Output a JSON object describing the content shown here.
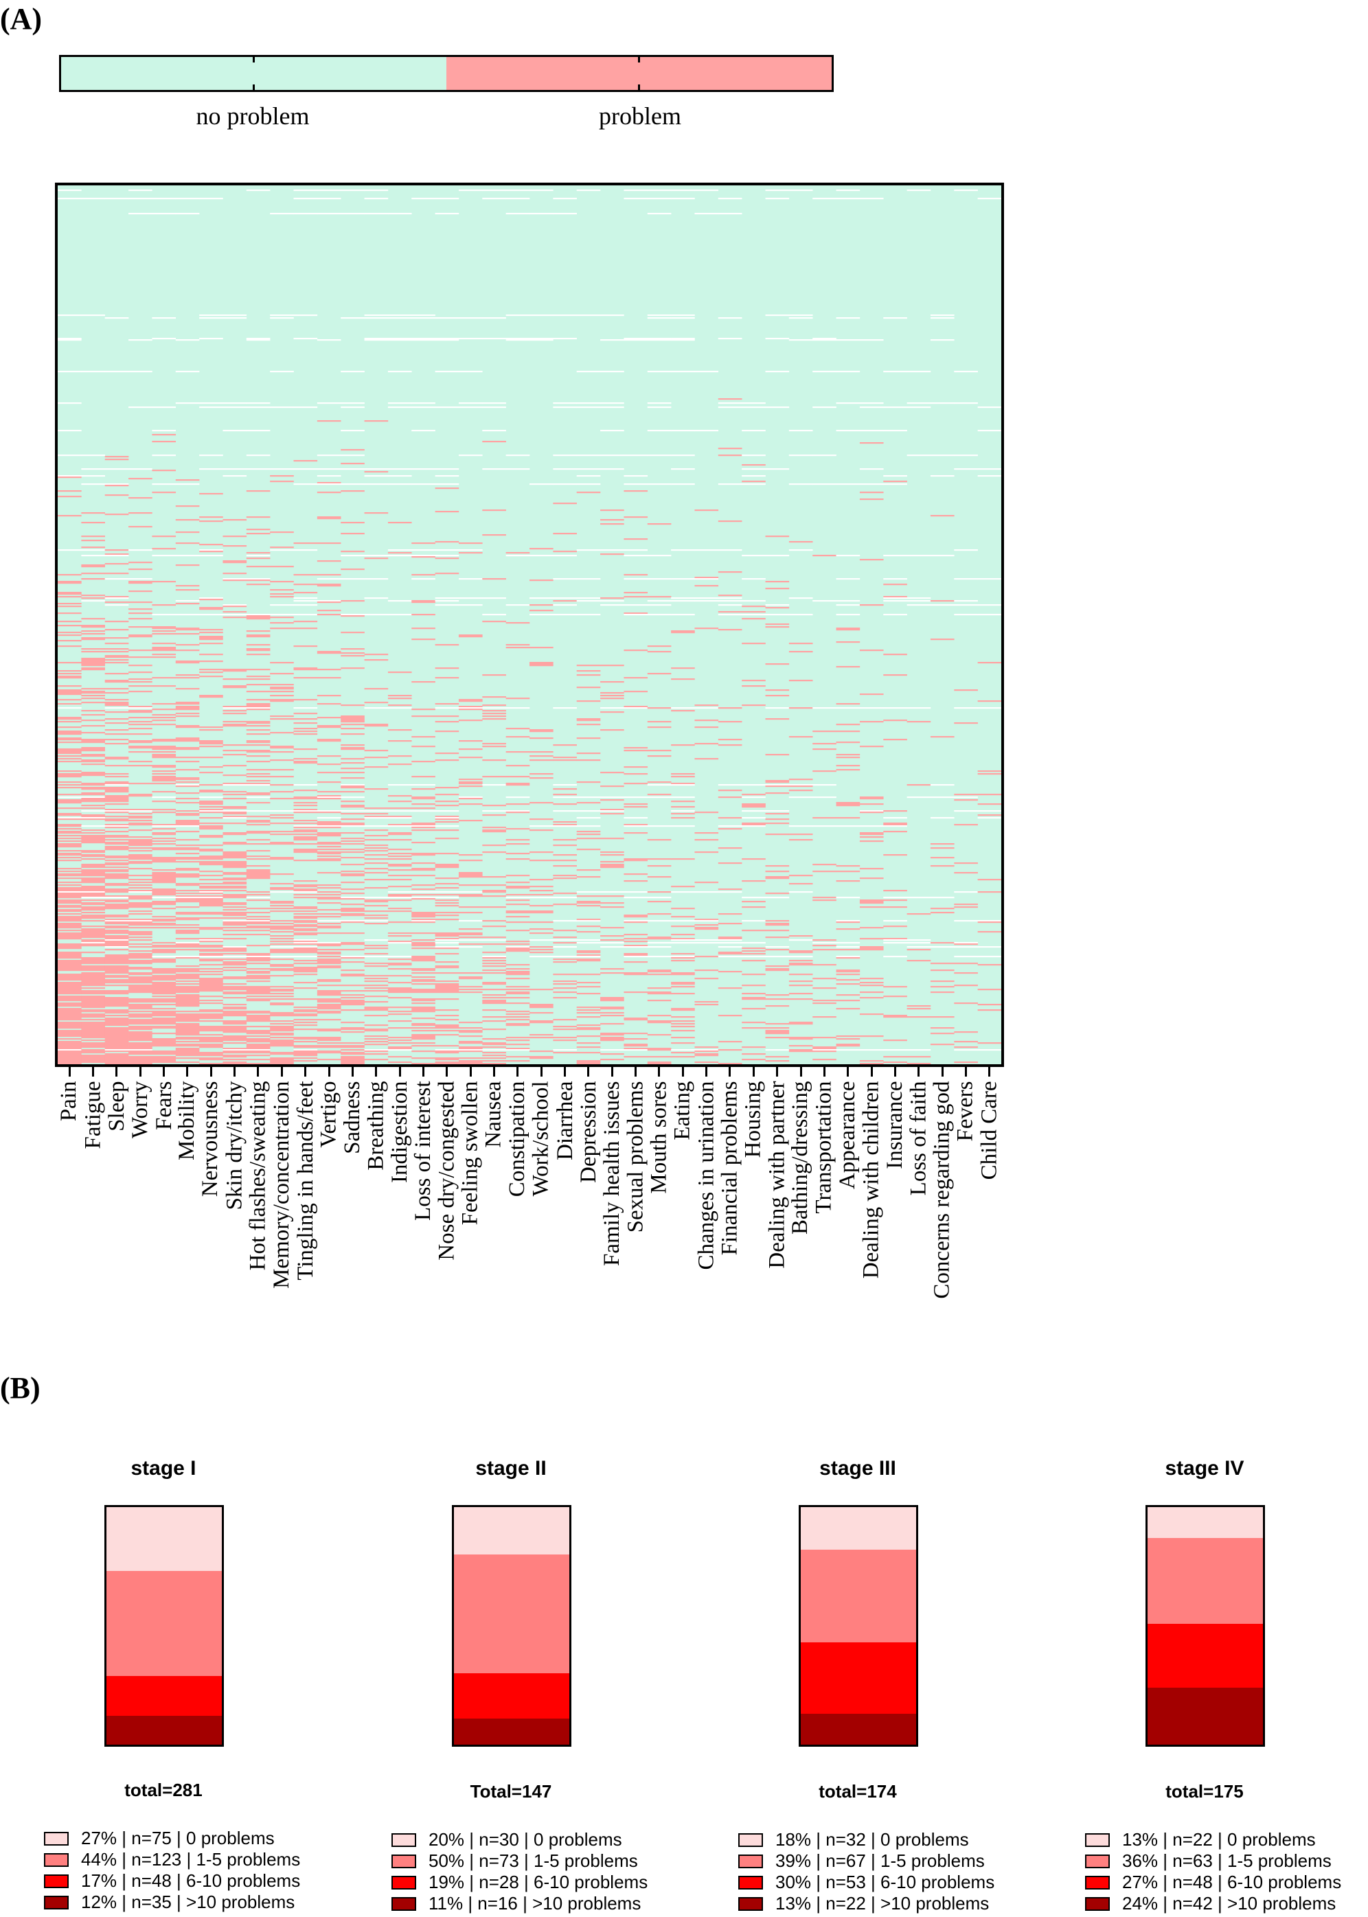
{
  "panel_labels": {
    "a": "(A)",
    "b": "(B)"
  },
  "colors": {
    "no_problem": "#ccf6e6",
    "problem": "#ffa3a3",
    "missing": "#ffffff",
    "stage_0": "#fddcdc",
    "stage_1_5": "#ff8080",
    "stage_6_10": "#ff0000",
    "stage_gt10": "#a30000"
  },
  "colorbar": {
    "labels": [
      "no problem",
      "problem"
    ]
  },
  "chart_data": [
    {
      "type": "heatmap",
      "title": "",
      "legend": [
        "no problem",
        "problem"
      ],
      "x": [
        "Pain",
        "Fatigue",
        "Sleep",
        "Worry",
        "Fears",
        "Mobility",
        "Nervousness",
        "Skin dry/itchy",
        "Hot flashes/sweating",
        "Memory/concentration",
        "Tingling in hands/feet",
        "Vertigo",
        "Sadness",
        "Breathing",
        "Indigestion",
        "Loss of interest",
        "Nose dry/congested",
        "Feeling swollen",
        "Nausea",
        "Constipation",
        "Work/school",
        "Diarrhea",
        "Depression",
        "Family health issues",
        "Sexual problems",
        "Mouth sores",
        "Eating",
        "Changes in urination",
        "Financial problems",
        "Housing",
        "Dealing with partner",
        "Bathing/dressing",
        "Transportation",
        "Appearance",
        "Dealing with children",
        "Insurance",
        "Loss of faith",
        "Concerns regarding god",
        "Fevers",
        "Child Care"
      ],
      "problem_rate_by_item": [
        0.5,
        0.46,
        0.43,
        0.4,
        0.38,
        0.36,
        0.33,
        0.31,
        0.29,
        0.27,
        0.26,
        0.25,
        0.23,
        0.21,
        0.2,
        0.19,
        0.18,
        0.17,
        0.16,
        0.15,
        0.14,
        0.13,
        0.12,
        0.12,
        0.11,
        0.1,
        0.1,
        0.09,
        0.09,
        0.08,
        0.08,
        0.07,
        0.07,
        0.07,
        0.06,
        0.06,
        0.05,
        0.05,
        0.04,
        0.04
      ],
      "patients_sorted_by_total_problems": true
    },
    {
      "type": "bar",
      "stacked": true,
      "normalized": true,
      "categories": [
        "stage I",
        "stage II",
        "stage III",
        "stage IV"
      ],
      "series": [
        {
          "name": "0 problems",
          "values": [
            27,
            20,
            18,
            13
          ]
        },
        {
          "name": "1-5 problems",
          "values": [
            44,
            50,
            39,
            36
          ]
        },
        {
          "name": "6-10 problems",
          "values": [
            17,
            19,
            30,
            27
          ]
        },
        {
          "name": ">10 problems",
          "values": [
            12,
            11,
            13,
            24
          ]
        }
      ]
    }
  ],
  "stages": [
    {
      "title": "stage I",
      "total": "total=281",
      "values": [
        27,
        44,
        17,
        12
      ],
      "legend": [
        "27% | n=75 | 0 problems",
        "44% | n=123 | 1-5 problems",
        "17% | n=48 | 6-10 problems",
        "12% | n=35 | >10 problems"
      ]
    },
    {
      "title": "stage II",
      "total": "Total=147",
      "values": [
        20,
        50,
        19,
        11
      ],
      "legend": [
        "20% | n=30 | 0 problems",
        "50% | n=73 | 1-5 problems",
        "19% | n=28 | 6-10 problems",
        "11% | n=16 | >10 problems"
      ]
    },
    {
      "title": "stage III",
      "total": "total=174",
      "values": [
        18,
        39,
        30,
        13
      ],
      "legend": [
        "18% | n=32 | 0 problems",
        "39% | n=67 | 1-5 problems",
        "30% | n=53 | 6-10 problems",
        "13% | n=22 | >10 problems"
      ]
    },
    {
      "title": "stage IV",
      "total": "total=175",
      "values": [
        13,
        36,
        27,
        24
      ],
      "legend": [
        "13% | n=22 | 0 problems",
        "36% | n=63 | 1-5 problems",
        "27% | n=48 | 6-10 problems",
        "24% | n=42 | >10 problems"
      ]
    }
  ]
}
